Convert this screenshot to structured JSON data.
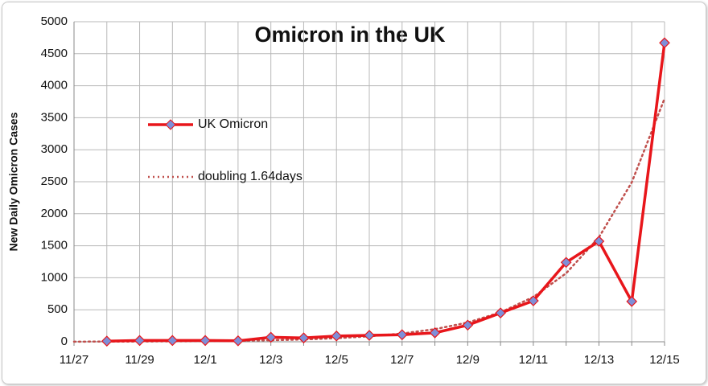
{
  "chart_data": {
    "type": "line",
    "title": "Omicron in the UK",
    "y_label": "New Daily Omicron Cases",
    "categories": [
      "11/27",
      null,
      "11/29",
      null,
      "12/1",
      null,
      "12/3",
      null,
      "12/5",
      null,
      "12/7",
      null,
      "12/9",
      null,
      "12/11",
      null,
      "12/13",
      null,
      "12/15"
    ],
    "series": [
      {
        "name": "UK Omicron",
        "color": "#e8161b",
        "marker_color": "#7e8fd8",
        "style": "solid",
        "values": [
          null,
          10,
          20,
          20,
          20,
          15,
          70,
          60,
          90,
          100,
          110,
          140,
          260,
          450,
          640,
          1240,
          1570,
          630,
          4670
        ]
      },
      {
        "name": "doubling 1.64days",
        "color": "#c0504d",
        "style": "dotted",
        "values": [
          2,
          3,
          4,
          7,
          10,
          16,
          24,
          36,
          56,
          85,
          129,
          197,
          301,
          459,
          700,
          1070,
          1632,
          2490,
          3800
        ]
      }
    ],
    "ylim": [
      0,
      5000
    ],
    "yticks": [
      0,
      500,
      1000,
      1500,
      2000,
      2500,
      3000,
      3500,
      4000,
      4500,
      5000
    ],
    "grid": true,
    "legend": "upper left"
  }
}
